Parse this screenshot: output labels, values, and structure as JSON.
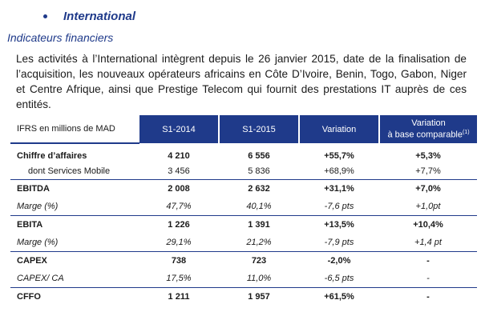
{
  "section": {
    "title": "International"
  },
  "subheading": "Indicateurs financiers",
  "intro": "Les activités à l’International intègrent depuis le 26 janvier 2015, date de la finalisation de l’acquisition, les nouveaux opérateurs africains en Côte D’Ivoire, Benin, Togo, Gabon, Niger et Centre Afrique, ainsi que Prestige Telecom qui fournit des prestations IT auprès de ces entités.",
  "table": {
    "headers": {
      "label": "IFRS en millions de MAD",
      "s1_2014": "S1-2014",
      "s1_2015": "S1-2015",
      "variation": "Variation",
      "variation_comp_line1": "Variation",
      "variation_comp_line2": "à base comparable",
      "variation_comp_note": "(1)"
    },
    "rows": [
      {
        "label": "Chiffre d’affaires",
        "s1_2014": "4 210",
        "s1_2015": "6 556",
        "variation": "+55,7%",
        "variation_comp": "+5,3%"
      },
      {
        "label": "dont Services Mobile",
        "s1_2014": "3 456",
        "s1_2015": "5 836",
        "variation": "+68,9%",
        "variation_comp": "+7,7%"
      },
      {
        "label": "EBITDA",
        "s1_2014": "2 008",
        "s1_2015": "2 632",
        "variation": "+31,1%",
        "variation_comp": "+7,0%"
      },
      {
        "label": "Marge (%)",
        "s1_2014": "47,7%",
        "s1_2015": "40,1%",
        "variation": "-7,6 pts",
        "variation_comp": "+1,0pt"
      },
      {
        "label": "EBITA",
        "s1_2014": "1 226",
        "s1_2015": "1 391",
        "variation": "+13,5%",
        "variation_comp": "+10,4%"
      },
      {
        "label": "Marge (%)",
        "s1_2014": "29,1%",
        "s1_2015": "21,2%",
        "variation": "-7,9 pts",
        "variation_comp": "+1,4 pt"
      },
      {
        "label": "CAPEX",
        "s1_2014": "738",
        "s1_2015": "723",
        "variation": "-2,0%",
        "variation_comp": "-"
      },
      {
        "label": "CAPEX/ CA",
        "s1_2014": "17,5%",
        "s1_2015": "11,0%",
        "variation": "-6,5 pts",
        "variation_comp": "-"
      },
      {
        "label": "CFFO",
        "s1_2014": "1 211",
        "s1_2015": "1 957",
        "variation": "+61,5%",
        "variation_comp": "-"
      }
    ]
  }
}
